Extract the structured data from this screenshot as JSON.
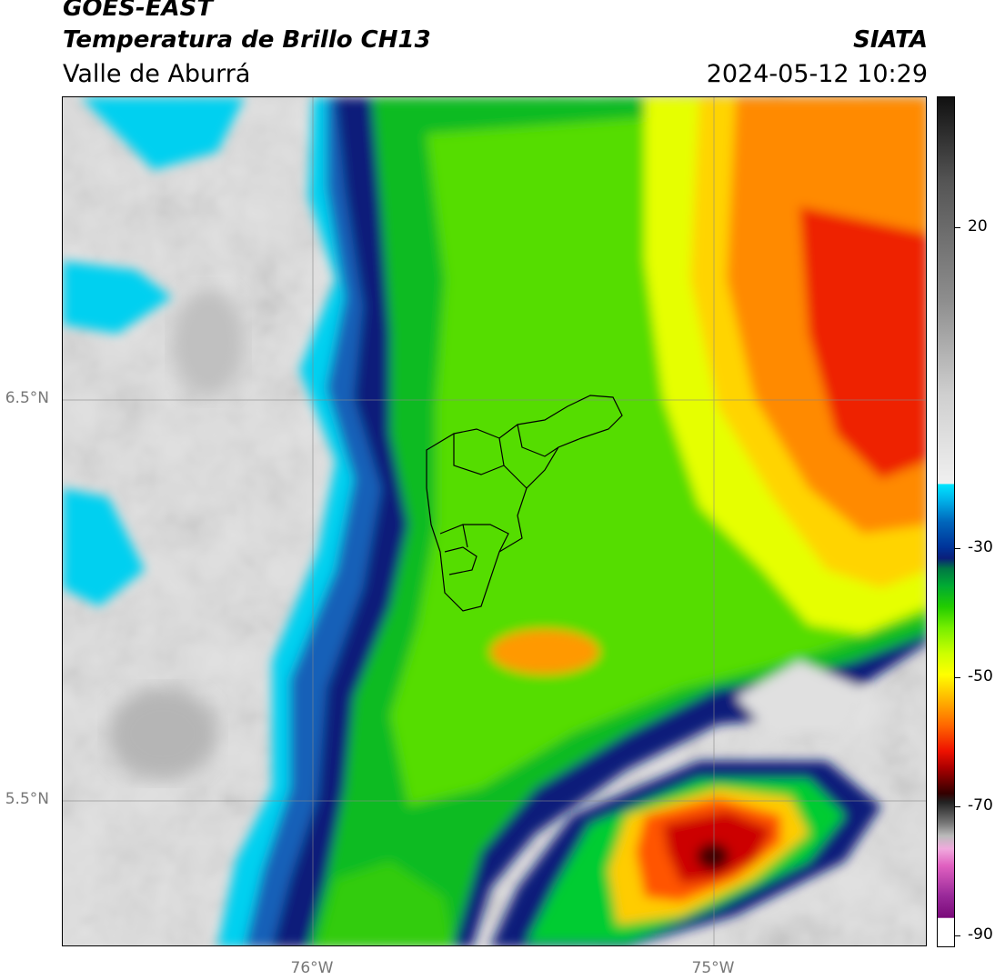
{
  "header": {
    "satellite": "GOES-EAST",
    "product": "Temperatura de Brillo CH13",
    "region": "Valle de Aburrá",
    "organization": "SIATA",
    "datetime": "2024-05-12 10:29"
  },
  "map": {
    "lat_labels": [
      "6.5°N",
      "5.5°N"
    ],
    "lon_labels": [
      "76°W",
      "75°W"
    ],
    "gridlines": true,
    "overlay": "municipal boundaries of Valle de Aburrá"
  },
  "colorbar": {
    "tick_labels": [
      "20",
      "-30",
      "-50",
      "-70",
      "-90"
    ],
    "colors": {
      "warm_gray": "#e8e8e8",
      "cyan": "#00e5ff",
      "blue": "#0066bb",
      "dark_blue": "#0a1f7a",
      "green": "#22cc00",
      "yellow": "#ffff00",
      "orange": "#ff8800",
      "red": "#ee1100",
      "dark_red": "#550000",
      "magenta": "#9a2a9a"
    }
  }
}
